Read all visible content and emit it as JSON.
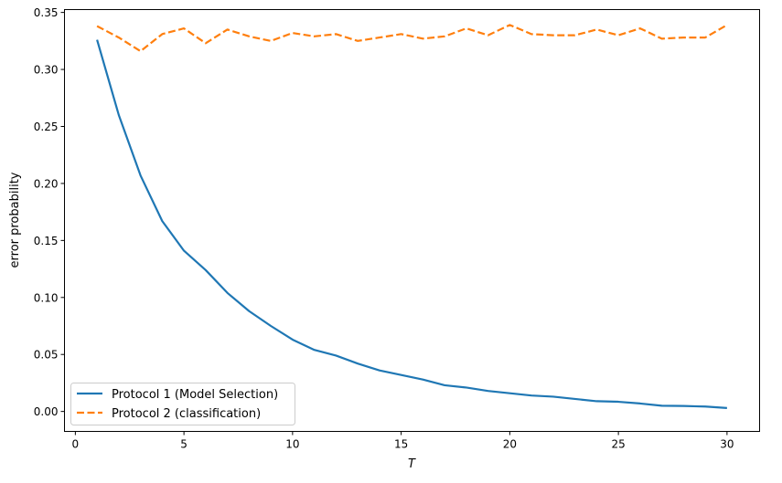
{
  "chart_data": {
    "type": "line",
    "title": "",
    "xlabel": "T",
    "ylabel": "error probability",
    "xlim": [
      -0.5,
      31.5
    ],
    "ylim": [
      -0.0175,
      0.3525
    ],
    "xticks": [
      0,
      5,
      10,
      15,
      20,
      25,
      30
    ],
    "xtick_labels": [
      "0",
      "5",
      "10",
      "15",
      "20",
      "25",
      "30"
    ],
    "yticks": [
      0,
      0.05,
      0.1,
      0.15,
      0.2,
      0.25,
      0.3,
      0.35
    ],
    "ytick_labels": [
      "0.00",
      "0.05",
      "0.10",
      "0.15",
      "0.20",
      "0.25",
      "0.30",
      "0.35"
    ],
    "grid": false,
    "legend_position": "lower-left",
    "x": [
      1,
      2,
      3,
      4,
      5,
      6,
      7,
      8,
      9,
      10,
      11,
      12,
      13,
      14,
      15,
      16,
      17,
      18,
      19,
      20,
      21,
      22,
      23,
      24,
      25,
      26,
      27,
      28,
      29,
      30
    ],
    "series": [
      {
        "name": "Protocol 1 (Model Selection)",
        "color": "#1f77b4",
        "style": "solid",
        "values": [
          0.326,
          0.26,
          0.207,
          0.167,
          0.141,
          0.124,
          0.104,
          0.088,
          0.075,
          0.063,
          0.054,
          0.049,
          0.042,
          0.036,
          0.032,
          0.028,
          0.023,
          0.021,
          0.018,
          0.016,
          0.014,
          0.013,
          0.011,
          0.009,
          0.0085,
          0.007,
          0.005,
          0.0048,
          0.0043,
          0.003
        ]
      },
      {
        "name": "Protocol 2 (classification)",
        "color": "#ff7f0e",
        "style": "dashed",
        "values": [
          0.338,
          0.328,
          0.316,
          0.331,
          0.336,
          0.323,
          0.335,
          0.329,
          0.325,
          0.332,
          0.329,
          0.331,
          0.325,
          0.328,
          0.331,
          0.327,
          0.329,
          0.336,
          0.33,
          0.339,
          0.331,
          0.33,
          0.33,
          0.335,
          0.33,
          0.336,
          0.327,
          0.328,
          0.328,
          0.339
        ]
      }
    ]
  }
}
